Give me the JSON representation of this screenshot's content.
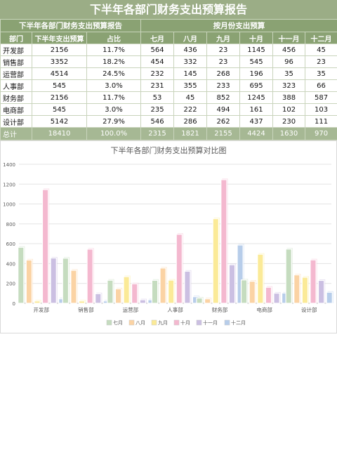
{
  "report_title": "下半年各部门财务支出预算报告",
  "table": {
    "left_group_header": "下半年各部门财务支出预算报告",
    "right_group_header": "按月份支出预算",
    "col_headers": [
      "部门",
      "下半年支出预算",
      "占比",
      "七月",
      "八月",
      "九月",
      "十月",
      "十一月",
      "十二月"
    ],
    "rows": [
      [
        "开发部",
        "2156",
        "11.7%",
        "564",
        "436",
        "23",
        "1145",
        "456",
        "45"
      ],
      [
        "销售部",
        "3352",
        "18.2%",
        "454",
        "332",
        "23",
        "545",
        "96",
        "23"
      ],
      [
        "运营部",
        "4514",
        "24.5%",
        "232",
        "145",
        "268",
        "196",
        "35",
        "35"
      ],
      [
        "人事部",
        "545",
        "3.0%",
        "231",
        "355",
        "233",
        "695",
        "323",
        "66"
      ],
      [
        "财务部",
        "2156",
        "11.7%",
        "53",
        "45",
        "852",
        "1245",
        "388",
        "587"
      ],
      [
        "电商部",
        "545",
        "3.0%",
        "235",
        "222",
        "494",
        "161",
        "102",
        "103"
      ],
      [
        "设计部",
        "5142",
        "27.9%",
        "546",
        "286",
        "262",
        "437",
        "230",
        "111"
      ]
    ],
    "total_row": [
      "总计",
      "18410",
      "100.0%",
      "2315",
      "1821",
      "2155",
      "4424",
      "1630",
      "970"
    ]
  },
  "colors": {
    "header_green": "#8aa273",
    "title_green": "#9bad86",
    "total_green": "#a6b894"
  },
  "chart_data": {
    "type": "bar",
    "title": "下半年各部门财务支出预算对比图",
    "categories": [
      "开发部",
      "销售部",
      "运营部",
      "人事部",
      "财务部",
      "电商部",
      "设计部"
    ],
    "series": [
      {
        "name": "七月",
        "color": "#c5dcbf",
        "values": [
          564,
          454,
          232,
          231,
          53,
          235,
          546
        ]
      },
      {
        "name": "八月",
        "color": "#fbd3a4",
        "values": [
          436,
          332,
          145,
          355,
          45,
          222,
          286
        ]
      },
      {
        "name": "九月",
        "color": "#fbea97",
        "values": [
          23,
          23,
          268,
          233,
          852,
          494,
          262
        ]
      },
      {
        "name": "十月",
        "color": "#f4b8cf",
        "values": [
          1145,
          545,
          196,
          695,
          1245,
          161,
          437
        ]
      },
      {
        "name": "十一月",
        "color": "#cbbfe2",
        "values": [
          456,
          96,
          35,
          323,
          388,
          102,
          230
        ]
      },
      {
        "name": "十二月",
        "color": "#b7cdea",
        "values": [
          45,
          23,
          35,
          66,
          587,
          103,
          111
        ]
      }
    ],
    "ylim": [
      0,
      1400
    ],
    "yticks": [
      "0",
      "200",
      "400",
      "600",
      "800",
      "1000",
      "1200",
      "1400"
    ],
    "grid": true,
    "legend_position": "bottom"
  }
}
